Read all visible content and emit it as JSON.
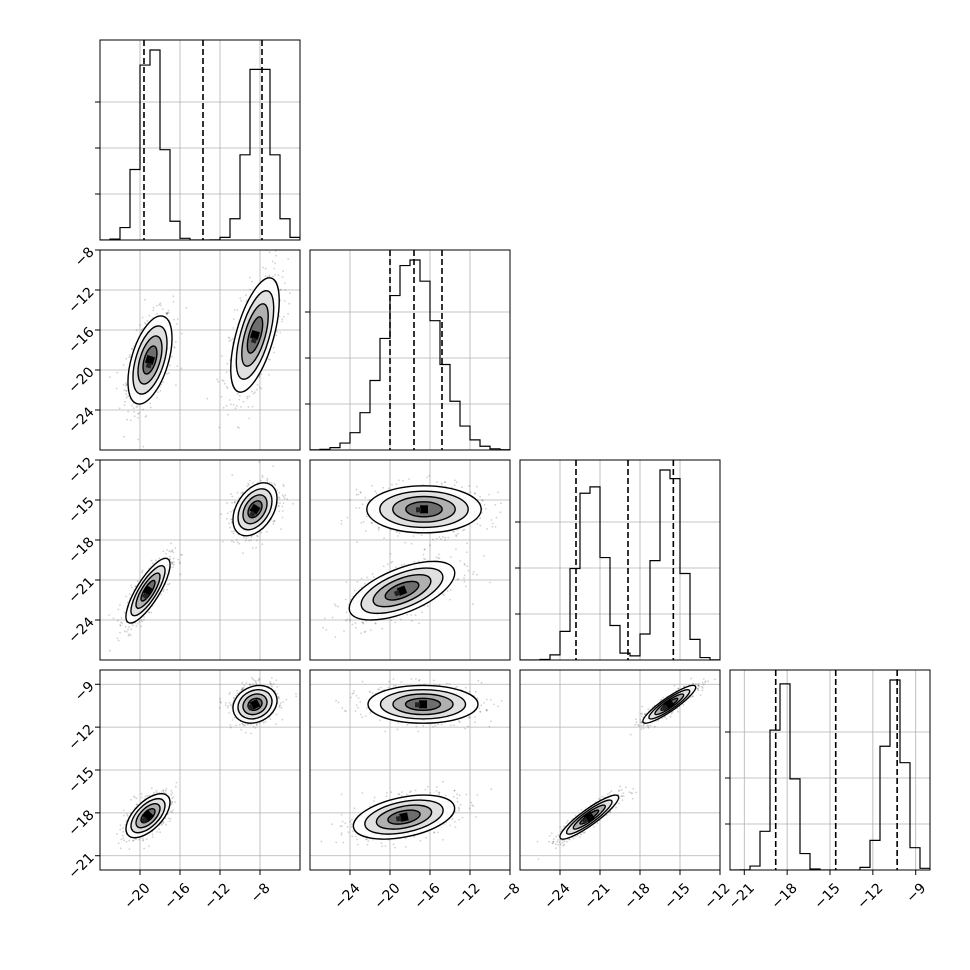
{
  "chart_data": {
    "type": "corner",
    "grid": true,
    "quantiles_marked": "dashed lines",
    "variables": [
      {
        "range": [
          -24,
          -4
        ],
        "ticks": [
          -20,
          -16,
          -12,
          -8
        ],
        "tick_labels": [
          "−20",
          "−16",
          "−12",
          "−8"
        ],
        "quantiles": [
          -19.6,
          -13.7,
          -7.8
        ],
        "modes": [
          {
            "mean": -18.9,
            "sd": 1.1,
            "weight": 0.5
          },
          {
            "mean": -8.0,
            "sd": 1.2,
            "weight": 0.5
          }
        ]
      },
      {
        "range": [
          -28,
          -8
        ],
        "ticks": [
          -24,
          -20,
          -16,
          -12,
          -8
        ],
        "tick_labels": [
          "−24",
          "−20",
          "−16",
          "−12",
          "−8"
        ],
        "quantiles": [
          -20.0,
          -17.6,
          -14.8
        ],
        "modes": [
          {
            "mean": -17.8,
            "sd": 2.6,
            "weight": 1.0
          }
        ]
      },
      {
        "range": [
          -27,
          -12
        ],
        "ticks": [
          -24,
          -21,
          -18,
          -15,
          -12
        ],
        "tick_labels": [
          "−24",
          "−21",
          "−18",
          "−15",
          "−12"
        ],
        "quantiles": [
          -22.8,
          -18.9,
          -15.5
        ],
        "modes": [
          {
            "mean": -21.7,
            "sd": 1.0,
            "weight": 0.5
          },
          {
            "mean": -15.8,
            "sd": 0.9,
            "weight": 0.5
          }
        ]
      },
      {
        "range": [
          -22,
          -8
        ],
        "ticks": [
          -21,
          -18,
          -15,
          -12,
          -9
        ],
        "tick_labels": [
          "−21",
          "−18",
          "−15",
          "−12",
          "−9"
        ],
        "quantiles": [
          -18.8,
          -14.6,
          -10.3
        ],
        "modes": [
          {
            "mean": -18.3,
            "sd": 0.7,
            "weight": 0.5
          },
          {
            "mean": -10.5,
            "sd": 0.7,
            "weight": 0.5
          }
        ]
      }
    ],
    "histograms": [
      {
        "panel": "1,1",
        "peak_bin_centers": [
          -19.0,
          -8.2
        ],
        "shape": "bimodal"
      },
      {
        "panel": "2,2",
        "peak_bin_centers": [
          -17.8
        ],
        "shape": "unimodal"
      },
      {
        "panel": "3,3",
        "peak_bin_centers": [
          -21.5,
          -15.8
        ],
        "shape": "bimodal"
      },
      {
        "panel": "4,4",
        "peak_bin_centers": [
          -18.2,
          -10.4
        ],
        "shape": "bimodal"
      }
    ],
    "scatter_panels": [
      {
        "x_var": 1,
        "y_var": 2,
        "clusters": [
          {
            "center": [
              -19.0,
              -19.0
            ],
            "spread": [
              1.0,
              2.0
            ],
            "corr": 0.5
          },
          {
            "center": [
              -8.5,
              -16.5
            ],
            "spread": [
              1.1,
              2.6
            ],
            "corr": 0.6
          }
        ]
      },
      {
        "x_var": 1,
        "y_var": 3,
        "clusters": [
          {
            "center": [
              -19.2,
              -21.8
            ],
            "spread": [
              1.0,
              1.1
            ],
            "corr": 0.8
          },
          {
            "center": [
              -8.5,
              -15.7
            ],
            "spread": [
              1.0,
              0.9
            ],
            "corr": 0.4
          }
        ]
      },
      {
        "x_var": 2,
        "y_var": 3,
        "clusters": [
          {
            "center": [
              -18.8,
              -21.8
            ],
            "spread": [
              2.4,
              1.0
            ],
            "corr": 0.6
          },
          {
            "center": [
              -16.6,
              -15.7
            ],
            "spread": [
              2.6,
              0.8
            ],
            "corr": 0.0
          }
        ]
      },
      {
        "x_var": 1,
        "y_var": 4,
        "clusters": [
          {
            "center": [
              -19.2,
              -18.2
            ],
            "spread": [
              1.0,
              0.7
            ],
            "corr": 0.6
          },
          {
            "center": [
              -8.5,
              -10.4
            ],
            "spread": [
              1.0,
              0.6
            ],
            "corr": 0.2
          }
        ]
      },
      {
        "x_var": 2,
        "y_var": 4,
        "clusters": [
          {
            "center": [
              -18.6,
              -18.3
            ],
            "spread": [
              2.3,
              0.7
            ],
            "corr": 0.4
          },
          {
            "center": [
              -16.7,
              -10.4
            ],
            "spread": [
              2.5,
              0.6
            ],
            "corr": 0.0
          }
        ]
      },
      {
        "x_var": 3,
        "y_var": 4,
        "clusters": [
          {
            "center": [
              -21.8,
              -18.3
            ],
            "spread": [
              1.0,
              0.7
            ],
            "corr": 0.9
          },
          {
            "center": [
              -15.8,
              -10.4
            ],
            "spread": [
              0.9,
              0.6
            ],
            "corr": 0.9
          }
        ]
      }
    ]
  }
}
